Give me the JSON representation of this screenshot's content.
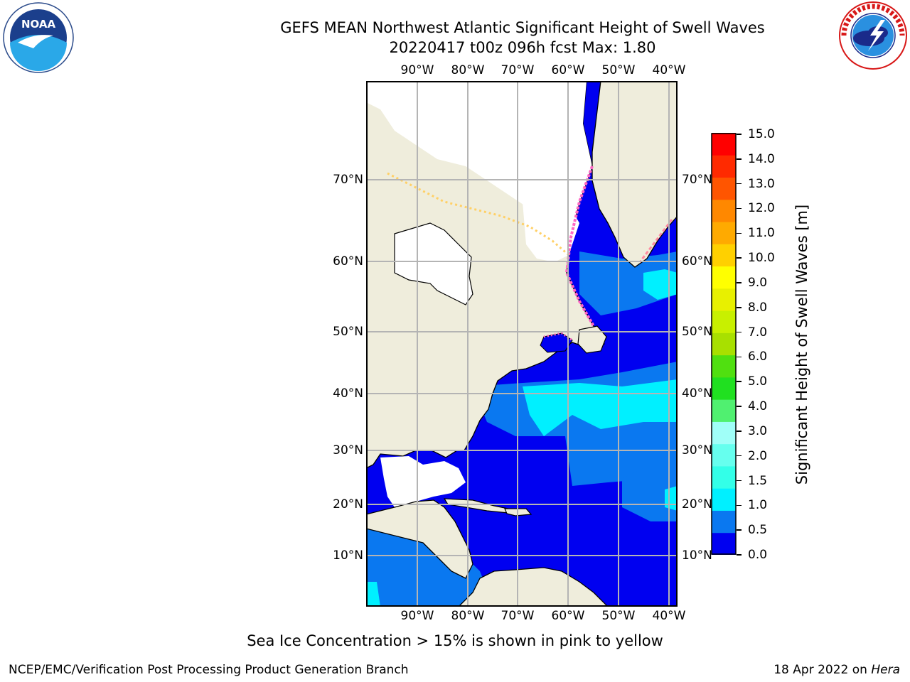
{
  "header": {
    "title": "GEFS MEAN Northwest Atlantic Significant Height of Swell Waves",
    "subtitle": "20220417 t00z 096h fcst   Max: 1.80"
  },
  "logos": {
    "noaa": {
      "icon": "noaa-logo",
      "text": "NOAA",
      "ring_text": "NATIONAL OCEANIC AND ATMOSPHERIC ADMINISTRATION · U.S. DEPARTMENT OF COMMERCE"
    },
    "nws": {
      "icon": "nws-logo",
      "ring_text": "NATIONAL WEATHER SERVICE"
    }
  },
  "map": {
    "lon_labels": [
      "90°W",
      "80°W",
      "70°W",
      "60°W",
      "50°W",
      "40°W"
    ],
    "lat_labels": [
      "70°N",
      "60°N",
      "50°N",
      "40°N",
      "30°N",
      "20°N",
      "10°N"
    ],
    "colors": {
      "land": "#efeddc",
      "ocean_low": "#0000f0",
      "ocean_mid": "#0a78f0",
      "ocean_high": "#18f0ff",
      "sea_ice": "#ff66c4",
      "gridline": "#b4b4b4"
    }
  },
  "colorbar": {
    "label": "Significant Height of Swell Waves [m]",
    "ticks": [
      "15.0",
      "14.0",
      "13.0",
      "12.0",
      "11.0",
      "10.0",
      "9.0",
      "8.0",
      "7.0",
      "6.0",
      "5.0",
      "4.0",
      "3.0",
      "2.0",
      "1.5",
      "1.0",
      "0.5",
      "0.0"
    ],
    "colors": [
      "#0000f0",
      "#0a78f0",
      "#00f0ff",
      "#33ffe8",
      "#66ffee",
      "#a0fff8",
      "#50f070",
      "#20e020",
      "#50e010",
      "#a8e000",
      "#c8f000",
      "#e8f000",
      "#ffff00",
      "#ffd000",
      "#ffaa00",
      "#ff8800",
      "#ff5500",
      "#ff2a00",
      "#ff0000"
    ]
  },
  "footer": {
    "note": "Sea Ice Concentration > 15% is shown in pink to yellow",
    "credit": "NCEP/EMC/Verification Post Processing Product Generation Branch",
    "date": "18 Apr 2022 on",
    "host": "Hera"
  }
}
